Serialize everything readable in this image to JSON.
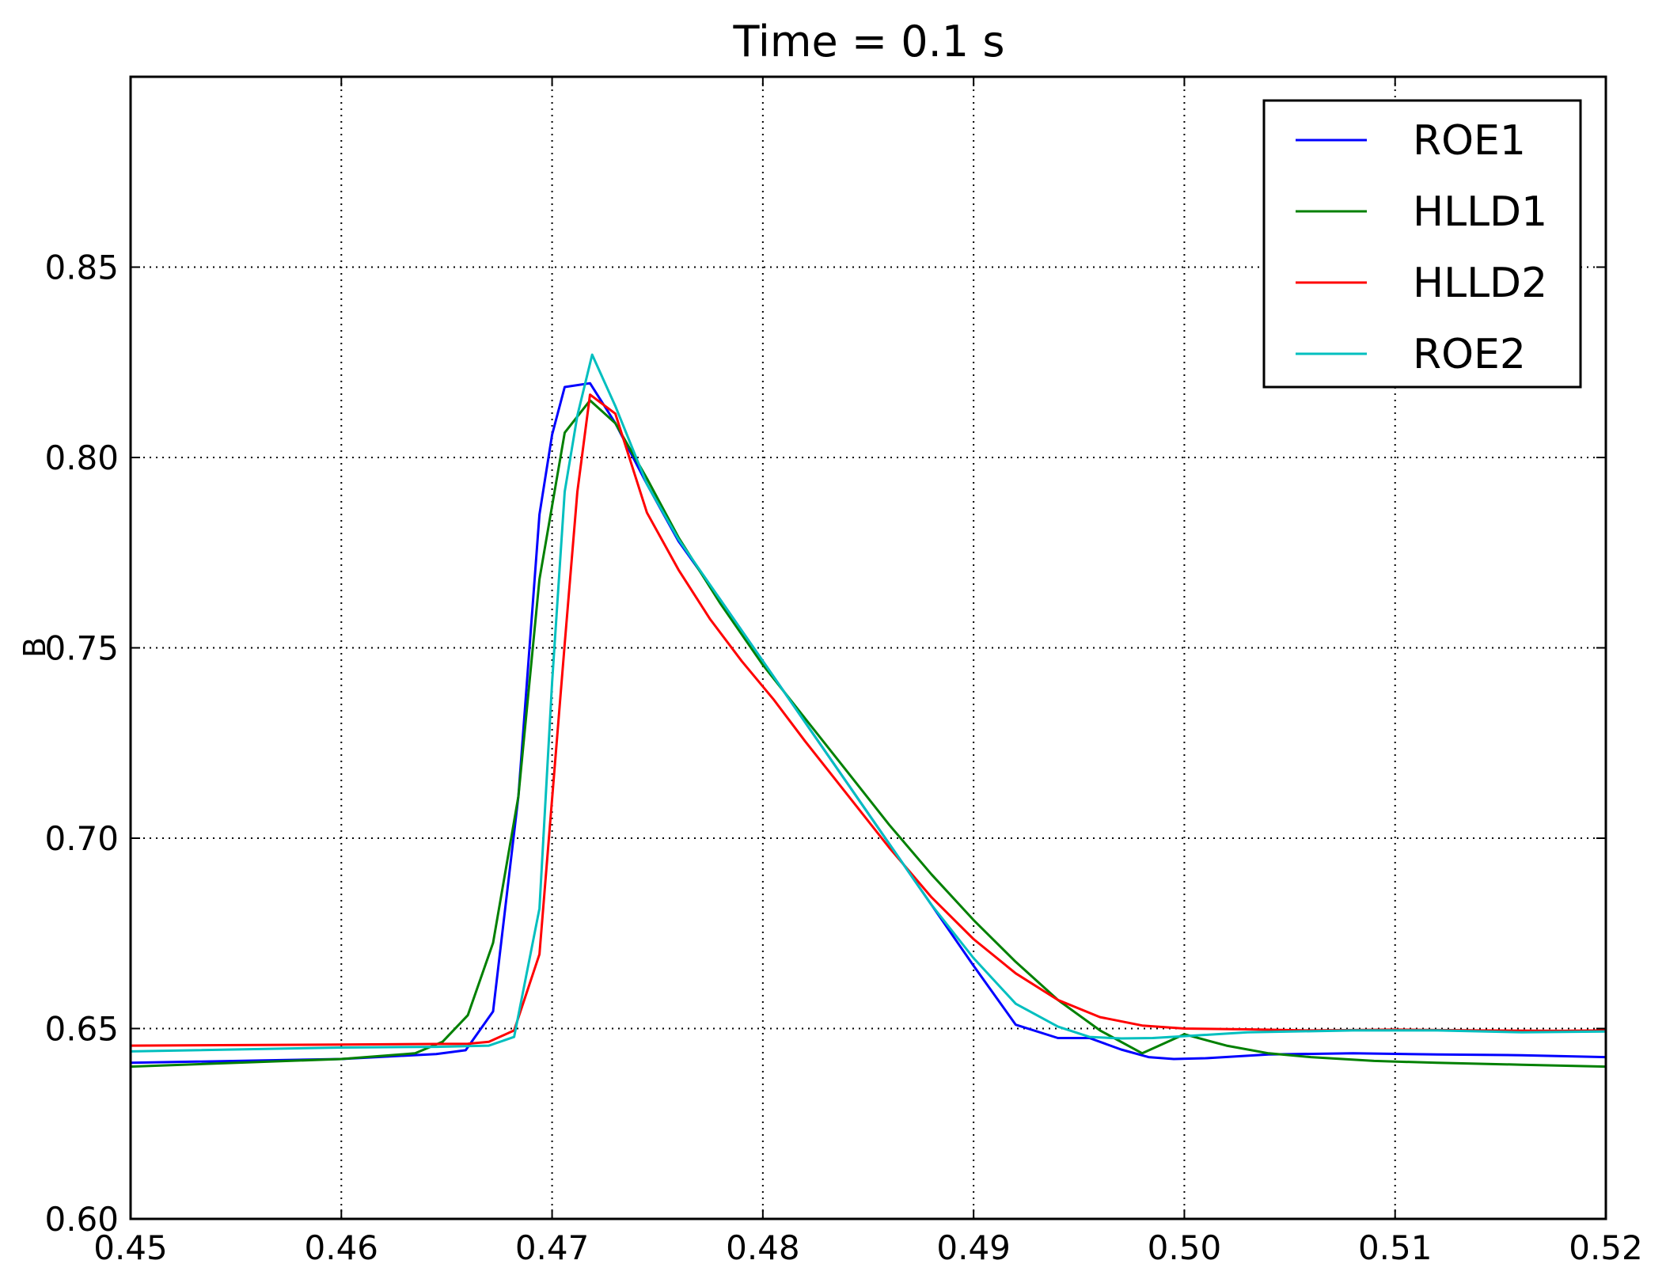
{
  "chart_data": {
    "type": "line",
    "title": "Time = 0.1 s",
    "xlabel": "",
    "ylabel": "B",
    "xlim": [
      0.45,
      0.52
    ],
    "ylim": [
      0.6,
      0.9
    ],
    "xticks": [
      0.45,
      0.46,
      0.47,
      0.48,
      0.49,
      0.5,
      0.51,
      0.52
    ],
    "xtick_labels": [
      "0.45",
      "0.46",
      "0.47",
      "0.48",
      "0.49",
      "0.50",
      "0.51",
      "0.52"
    ],
    "yticks": [
      0.6,
      0.65,
      0.7,
      0.75,
      0.8,
      0.85
    ],
    "ytick_labels": [
      "0.60",
      "0.65",
      "0.70",
      "0.75",
      "0.80",
      "0.85"
    ],
    "grid": true,
    "legend_position": "top-right",
    "series": [
      {
        "name": "ROE1",
        "color": "#0000ff",
        "x": [
          0.45,
          0.46,
          0.4645,
          0.4659,
          0.4672,
          0.4684,
          0.4694,
          0.47,
          0.4706,
          0.4718,
          0.473,
          0.4745,
          0.476,
          0.478,
          0.48,
          0.482,
          0.484,
          0.486,
          0.488,
          0.49,
          0.492,
          0.494,
          0.4955,
          0.497,
          0.4983,
          0.4995,
          0.501,
          0.504,
          0.508,
          0.512,
          0.516,
          0.52
        ],
        "y": [
          0.641,
          0.642,
          0.6433,
          0.6443,
          0.6545,
          0.711,
          0.785,
          0.806,
          0.8185,
          0.8195,
          0.809,
          0.793,
          0.778,
          0.7625,
          0.7465,
          0.7305,
          0.7145,
          0.6985,
          0.6825,
          0.6665,
          0.651,
          0.6475,
          0.6475,
          0.6445,
          0.6425,
          0.642,
          0.6422,
          0.6432,
          0.6435,
          0.6432,
          0.643,
          0.6425
        ]
      },
      {
        "name": "HLLD1",
        "color": "#008000",
        "x": [
          0.45,
          0.46,
          0.4635,
          0.4648,
          0.466,
          0.4672,
          0.4684,
          0.4694,
          0.4706,
          0.4718,
          0.473,
          0.4745,
          0.476,
          0.478,
          0.48,
          0.482,
          0.484,
          0.486,
          0.488,
          0.49,
          0.492,
          0.494,
          0.496,
          0.498,
          0.5,
          0.502,
          0.504,
          0.506,
          0.509,
          0.512,
          0.516,
          0.52
        ],
        "y": [
          0.64,
          0.642,
          0.6435,
          0.6465,
          0.6535,
          0.6725,
          0.711,
          0.768,
          0.8065,
          0.815,
          0.809,
          0.7945,
          0.779,
          0.7615,
          0.7455,
          0.7315,
          0.7175,
          0.7035,
          0.6905,
          0.6785,
          0.6675,
          0.6575,
          0.6495,
          0.6435,
          0.6485,
          0.6455,
          0.6435,
          0.6425,
          0.6415,
          0.641,
          0.6405,
          0.64
        ]
      },
      {
        "name": "HLLD2",
        "color": "#ff0000",
        "x": [
          0.45,
          0.46,
          0.466,
          0.467,
          0.4682,
          0.4694,
          0.4706,
          0.4712,
          0.4718,
          0.473,
          0.4745,
          0.476,
          0.4775,
          0.479,
          0.4805,
          0.482,
          0.484,
          0.486,
          0.488,
          0.49,
          0.492,
          0.494,
          0.496,
          0.498,
          0.5,
          0.503,
          0.506,
          0.51,
          0.514,
          0.518,
          0.52
        ],
        "y": [
          0.6455,
          0.6458,
          0.646,
          0.6465,
          0.6495,
          0.6695,
          0.751,
          0.791,
          0.8165,
          0.8115,
          0.7855,
          0.7705,
          0.7575,
          0.7465,
          0.7365,
          0.7255,
          0.7115,
          0.6975,
          0.6845,
          0.6735,
          0.6645,
          0.6575,
          0.653,
          0.6508,
          0.65,
          0.6498,
          0.6495,
          0.6497,
          0.6495,
          0.6494,
          0.6495
        ]
      },
      {
        "name": "ROE2",
        "color": "#00bfbf",
        "x": [
          0.45,
          0.46,
          0.4645,
          0.467,
          0.4682,
          0.4694,
          0.47,
          0.4706,
          0.4712,
          0.4719,
          0.473,
          0.4745,
          0.476,
          0.478,
          0.48,
          0.482,
          0.484,
          0.486,
          0.488,
          0.49,
          0.492,
          0.494,
          0.4955,
          0.497,
          0.4985,
          0.5,
          0.503,
          0.508,
          0.512,
          0.516,
          0.52
        ],
        "y": [
          0.644,
          0.645,
          0.6452,
          0.6455,
          0.6478,
          0.6815,
          0.741,
          0.791,
          0.811,
          0.827,
          0.8135,
          0.793,
          0.7785,
          0.7625,
          0.7465,
          0.7305,
          0.7145,
          0.6985,
          0.6825,
          0.6685,
          0.6565,
          0.6505,
          0.6478,
          0.6474,
          0.6475,
          0.648,
          0.649,
          0.6495,
          0.6495,
          0.649,
          0.6492
        ]
      }
    ]
  }
}
